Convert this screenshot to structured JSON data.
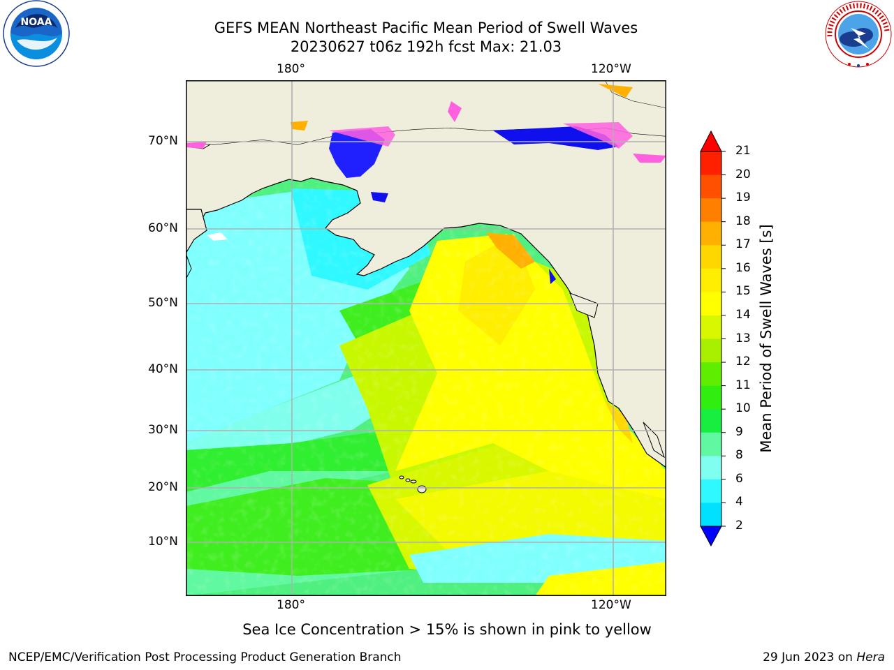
{
  "header": {
    "title_line1": "GEFS MEAN Northeast Pacific Mean Period of Swell Waves",
    "title_line2": "20230627 t06z 192h fcst   Max: 21.03"
  },
  "logos": {
    "noaa_text": "NOAA",
    "noaa_ring_text": "NATIONAL OCEANIC AND ATMOSPHERIC ADMINISTRATION · U.S. DEPARTMENT OF COMMERCE",
    "nws_ring_text": "NATIONAL WEATHER SERVICE"
  },
  "map": {
    "lon_labels": [
      "180°",
      "120°W"
    ],
    "lat_labels": [
      "70°N",
      "60°N",
      "50°N",
      "40°N",
      "30°N",
      "20°N",
      "10°N"
    ],
    "land_color": "#efeddc",
    "gridline_color": "#b0b0b0"
  },
  "colorbar": {
    "label": "Mean Period of Swell Waves [s]",
    "ticks": [
      "21",
      "20",
      "19",
      "18",
      "17",
      "16",
      "15",
      "14",
      "13",
      "12",
      "11",
      "10",
      "9",
      "8",
      "6",
      "4",
      "2"
    ],
    "colors": [
      "#ff2000",
      "#ff5000",
      "#ff8000",
      "#ffb000",
      "#ffd700",
      "#ffee00",
      "#ffff00",
      "#d8f800",
      "#a8f000",
      "#60ee00",
      "#30ee10",
      "#18ee40",
      "#60f8a0",
      "#80fff0",
      "#30f8ff",
      "#00e0ff",
      "#0070ff"
    ],
    "extend_max_color": "#ff0000",
    "extend_min_color": "#0000ff"
  },
  "annotation": "Sea Ice Concentration > 15% is shown in pink to yellow",
  "footer": {
    "left": "NCEP/EMC/Verification Post Processing Product Generation Branch",
    "right_prefix": "29 Jun 2023 on ",
    "right_host": "Hera"
  }
}
